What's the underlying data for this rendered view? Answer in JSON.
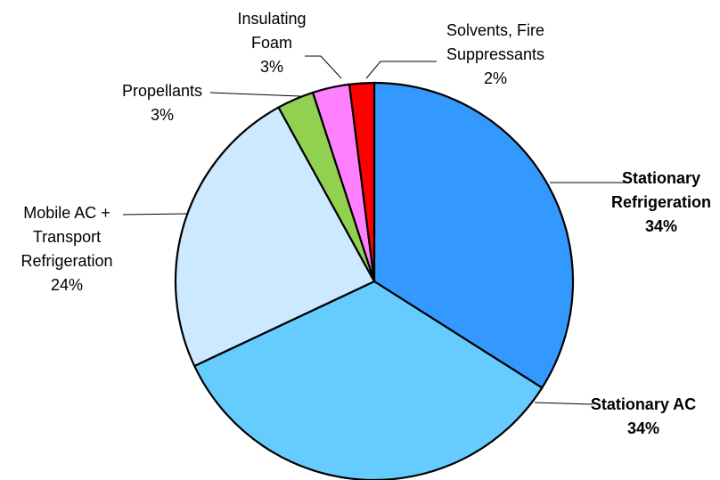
{
  "chart_data": {
    "type": "pie",
    "title": "",
    "start_angle_deg": 0,
    "direction": "clockwise",
    "slices": [
      {
        "name": "Stationary Refrigeration",
        "label_lines": [
          "Stationary",
          "Refrigeration"
        ],
        "value": 34,
        "value_label": "34%",
        "color": "#3399FF",
        "bold": true
      },
      {
        "name": "Stationary AC",
        "label_lines": [
          "Stationary AC"
        ],
        "value": 34,
        "value_label": "34%",
        "color": "#66CCFF",
        "bold": true
      },
      {
        "name": "Mobile AC + Transport Refrigeration",
        "label_lines": [
          "Mobile AC +",
          "Transport",
          "Refrigeration"
        ],
        "value": 24,
        "value_label": "24%",
        "color": "#CCE9FF",
        "bold": false
      },
      {
        "name": "Propellants",
        "label_lines": [
          "Propellants"
        ],
        "value": 3,
        "value_label": "3%",
        "color": "#92D050",
        "bold": false
      },
      {
        "name": "Insulating Foam",
        "label_lines": [
          "Insulating",
          "Foam"
        ],
        "value": 3,
        "value_label": "3%",
        "color": "#FF80FF",
        "bold": false
      },
      {
        "name": "Solvents, Fire Suppressants",
        "label_lines": [
          "Solvents, Fire",
          "Suppressants"
        ],
        "value": 2,
        "value_label": "2%",
        "color": "#FF0000",
        "bold": false
      }
    ]
  }
}
